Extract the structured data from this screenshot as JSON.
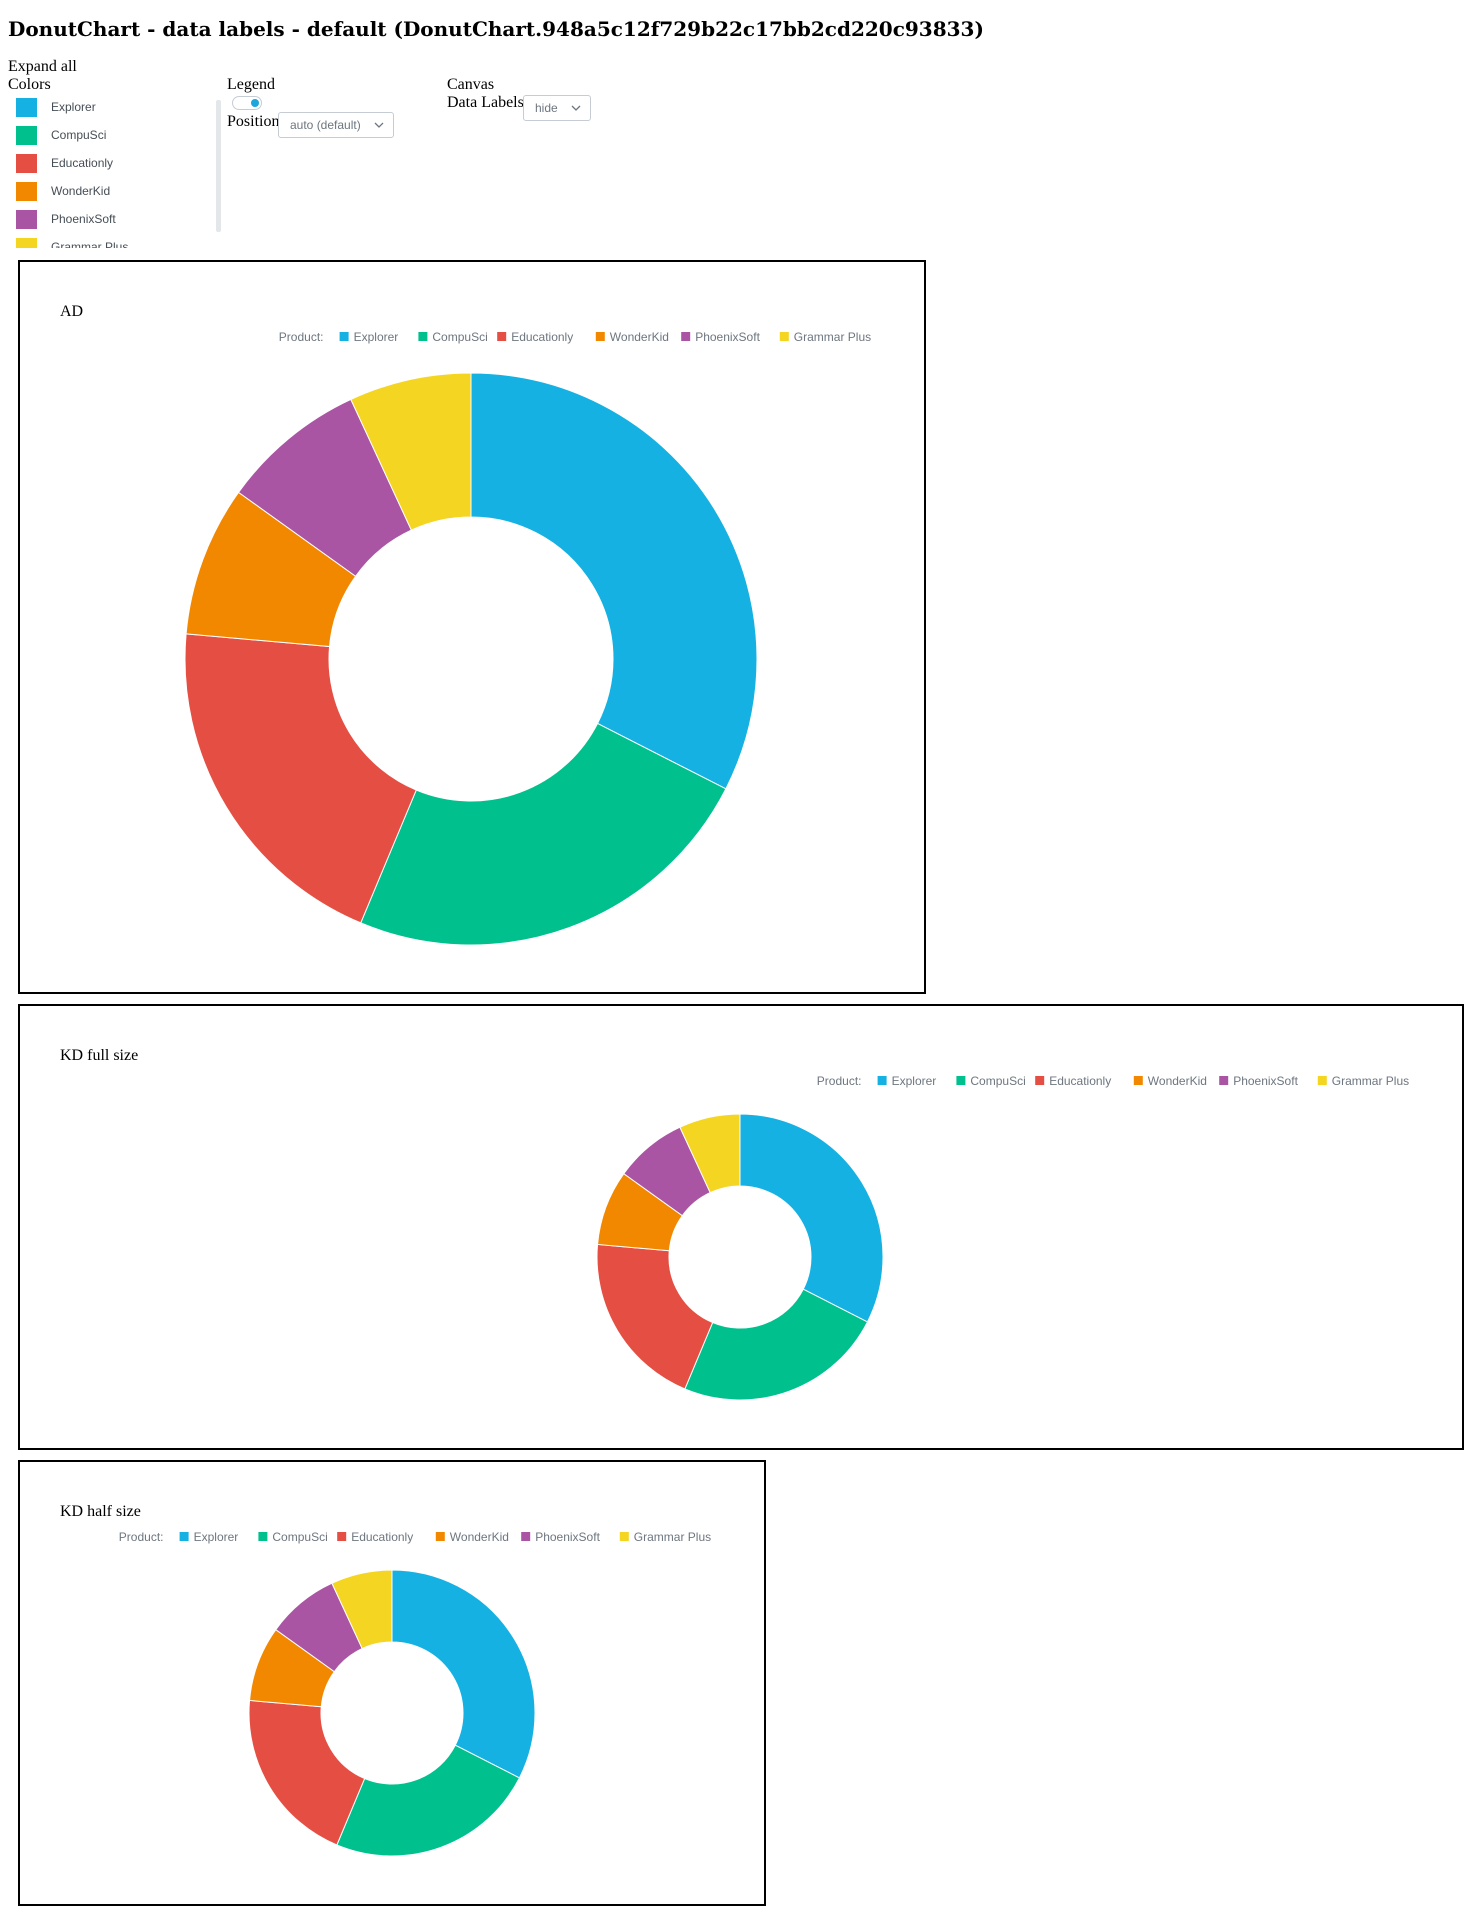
{
  "page_title": "DonutChart - data labels - default (DonutChart.948a5c12f729b22c17bb2cd220c93833)",
  "controls": {
    "expand_all": "Expand all",
    "colors_label": "Colors",
    "legend_label": "Legend",
    "legend_toggle_on": true,
    "position_label": "Position",
    "position_value": "auto (default)",
    "canvas_label": "Canvas",
    "data_labels_label": "Data Labels",
    "data_labels_value": "hide"
  },
  "colors": [
    {
      "name": "Explorer",
      "color": "#14b1e2"
    },
    {
      "name": "CompuSci",
      "color": "#00c18d"
    },
    {
      "name": "Educationly",
      "color": "#e54e43"
    },
    {
      "name": "WonderKid",
      "color": "#f18800"
    },
    {
      "name": "PhoenixSoft",
      "color": "#aa55a3"
    },
    {
      "name": "Grammar Plus",
      "color": "#f4d522"
    }
  ],
  "charts": [
    {
      "title": "AD",
      "legend_title": "Product:"
    },
    {
      "title": "KD full size",
      "legend_title": "Product:"
    },
    {
      "title": "KD half size",
      "legend_title": "Product:"
    }
  ],
  "chart_data": [
    {
      "type": "pie",
      "title": "AD",
      "legend": "Product:",
      "categories": [
        "Explorer",
        "CompuSci",
        "Educationly",
        "WonderKid",
        "PhoenixSoft",
        "Grammar Plus"
      ],
      "values": [
        32.5,
        23.8,
        20.1,
        8.5,
        8.2,
        6.9
      ],
      "data_labels": "hide"
    },
    {
      "type": "pie",
      "title": "KD full size",
      "legend": "Product:",
      "categories": [
        "Explorer",
        "CompuSci",
        "Educationly",
        "WonderKid",
        "PhoenixSoft",
        "Grammar Plus"
      ],
      "values": [
        32.5,
        23.8,
        20.1,
        8.5,
        8.2,
        6.9
      ],
      "data_labels": "hide"
    },
    {
      "type": "pie",
      "title": "KD half size",
      "legend": "Product:",
      "categories": [
        "Explorer",
        "CompuSci",
        "Educationly",
        "WonderKid",
        "PhoenixSoft",
        "Grammar Plus"
      ],
      "values": [
        32.5,
        23.8,
        20.1,
        8.5,
        8.2,
        6.9
      ],
      "data_labels": "hide"
    }
  ]
}
